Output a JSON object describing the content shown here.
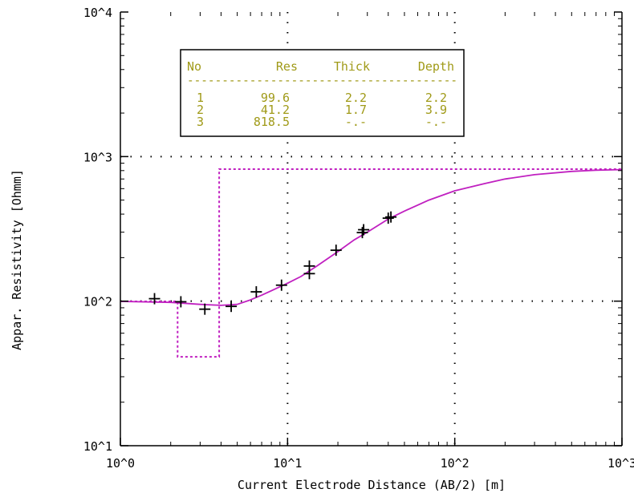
{
  "chart_data": {
    "type": "line",
    "title": "",
    "xlabel": "Current Electrode Distance (AB/2) [m]",
    "ylabel": "Appar. Resistivity [Ohmm]",
    "xscale": "log",
    "yscale": "log",
    "xlim": [
      1,
      1000
    ],
    "ylim": [
      10,
      10000
    ],
    "grid": "dotted, at decades",
    "x_tick_labels": [
      "10^0",
      "10^1",
      "10^2",
      "10^3"
    ],
    "y_tick_labels": [
      "10^1",
      "10^2",
      "10^3",
      "10^4"
    ],
    "x_tick_values": [
      1,
      10,
      100,
      1000
    ],
    "y_tick_values": [
      10,
      100,
      1000,
      10000
    ],
    "measured_points": [
      {
        "x": 1.6,
        "y": 104
      },
      {
        "x": 2.3,
        "y": 99
      },
      {
        "x": 3.2,
        "y": 88
      },
      {
        "x": 4.6,
        "y": 92
      },
      {
        "x": 6.5,
        "y": 116
      },
      {
        "x": 9.2,
        "y": 129
      },
      {
        "x": 13.5,
        "y": 175
      },
      {
        "x": 13.5,
        "y": 155
      },
      {
        "x": 19.5,
        "y": 225
      },
      {
        "x": 28,
        "y": 298
      },
      {
        "x": 28.5,
        "y": 312
      },
      {
        "x": 40,
        "y": 375
      },
      {
        "x": 41.5,
        "y": 382
      }
    ],
    "model_curve": [
      {
        "x": 1,
        "y": 99.6
      },
      {
        "x": 2,
        "y": 98
      },
      {
        "x": 3,
        "y": 95
      },
      {
        "x": 4,
        "y": 93.5
      },
      {
        "x": 5,
        "y": 95
      },
      {
        "x": 6,
        "y": 102
      },
      {
        "x": 7,
        "y": 110
      },
      {
        "x": 8,
        "y": 118
      },
      {
        "x": 10,
        "y": 133
      },
      {
        "x": 12,
        "y": 148
      },
      {
        "x": 15,
        "y": 175
      },
      {
        "x": 20,
        "y": 220
      },
      {
        "x": 25,
        "y": 265
      },
      {
        "x": 30,
        "y": 300
      },
      {
        "x": 40,
        "y": 370
      },
      {
        "x": 50,
        "y": 420
      },
      {
        "x": 70,
        "y": 500
      },
      {
        "x": 100,
        "y": 580
      },
      {
        "x": 150,
        "y": 650
      },
      {
        "x": 200,
        "y": 700
      },
      {
        "x": 300,
        "y": 750
      },
      {
        "x": 500,
        "y": 790
      },
      {
        "x": 700,
        "y": 805
      },
      {
        "x": 1000,
        "y": 812
      }
    ],
    "layer_model": [
      {
        "x": 1,
        "y": 99.6
      },
      {
        "x": 2.2,
        "y": 99.6
      },
      {
        "x": 2.2,
        "y": 41.2
      },
      {
        "x": 3.9,
        "y": 41.2
      },
      {
        "x": 3.9,
        "y": 818.5
      },
      {
        "x": 1000,
        "y": 818.5
      }
    ],
    "colors": {
      "model": "#c020c0",
      "points": "#000000",
      "table_text": "#a09a18",
      "grid": "#000000"
    },
    "table": {
      "headers": [
        "No",
        "Res",
        "Thick",
        "Depth"
      ],
      "separator": "---------------------------------------",
      "rows": [
        [
          "1",
          "99.6",
          "2.2",
          "2.2"
        ],
        [
          "2",
          "41.2",
          "1.7",
          "3.9"
        ],
        [
          "3",
          "818.5",
          "-.-",
          "-.-"
        ]
      ]
    }
  }
}
